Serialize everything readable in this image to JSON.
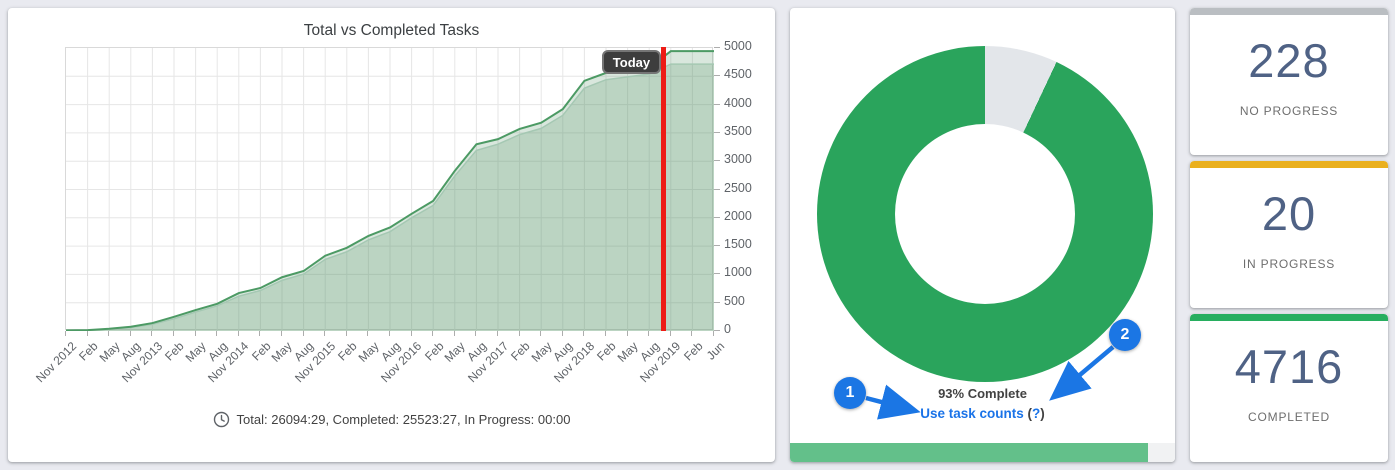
{
  "chart_data": [
    {
      "type": "area",
      "title": "Total vs Completed Tasks",
      "x_labels": [
        "Nov 2012",
        "Feb",
        "May",
        "Aug",
        "Nov 2013",
        "Feb",
        "May",
        "Aug",
        "Nov 2014",
        "Feb",
        "May",
        "Aug",
        "Nov 2015",
        "Feb",
        "May",
        "Aug",
        "Nov 2016",
        "Feb",
        "May",
        "Aug",
        "Nov 2017",
        "Feb",
        "May",
        "Aug",
        "Nov 2018",
        "Feb",
        "May",
        "Aug",
        "Nov 2019",
        "Feb",
        "Jun"
      ],
      "ylim": [
        0,
        5000
      ],
      "y_ticks": [
        0,
        500,
        1000,
        1500,
        2000,
        2500,
        3000,
        3500,
        4000,
        4500,
        5000
      ],
      "grid": true,
      "today_x_fraction": 0.923,
      "today_label": "Today",
      "series": [
        {
          "name": "Total",
          "color": "#4c9a64",
          "fill": "rgba(82,145,101,0.22)",
          "values": [
            10,
            15,
            40,
            75,
            140,
            250,
            370,
            480,
            670,
            760,
            950,
            1060,
            1330,
            1470,
            1680,
            1830,
            2070,
            2300,
            2830,
            3300,
            3390,
            3570,
            3680,
            3920,
            4420,
            4560,
            4600,
            4650,
            4944,
            4944,
            4944
          ]
        },
        {
          "name": "Completed",
          "color": "#a5c8b3",
          "fill": "rgba(82,145,101,0.22)",
          "values": [
            10,
            12,
            32,
            62,
            120,
            215,
            335,
            445,
            615,
            715,
            895,
            1005,
            1265,
            1400,
            1610,
            1755,
            2000,
            2220,
            2740,
            3190,
            3300,
            3470,
            3580,
            3810,
            4290,
            4440,
            4490,
            4540,
            4716,
            4716,
            4716
          ]
        }
      ]
    },
    {
      "type": "pie",
      "donut": true,
      "label": "93% Complete",
      "slices": [
        {
          "name": "Complete",
          "value": 93,
          "color": "#2aa45c"
        },
        {
          "name": "Remaining",
          "value": 7,
          "color": "#e3e6ea"
        }
      ]
    }
  ],
  "tasks_chart": {
    "title": "Total vs Completed Tasks",
    "today_label": "Today",
    "footer_text": "Total: 26094:29, Completed: 25523:27, In Progress: 00:00"
  },
  "donut_panel": {
    "percent_text": "93% Complete",
    "link_text": "Use task counts",
    "help_open": "(",
    "help_mark": "?",
    "help_close": ")",
    "progress_percent": 93,
    "badges": [
      {
        "n": "1"
      },
      {
        "n": "2"
      }
    ]
  },
  "stat_cards": [
    {
      "value": "228",
      "label": "NO PROGRESS",
      "accent": "#babec2"
    },
    {
      "value": "20",
      "label": "IN PROGRESS",
      "accent": "#eab01e"
    },
    {
      "value": "4716",
      "label": "COMPLETED",
      "accent": "#27ae5f"
    }
  ],
  "colors": {
    "page_bg": "#e9eaf0",
    "today_line": "#ed1c16",
    "accent_blue": "#1b76e4",
    "progress_fill": "#63c08a"
  }
}
